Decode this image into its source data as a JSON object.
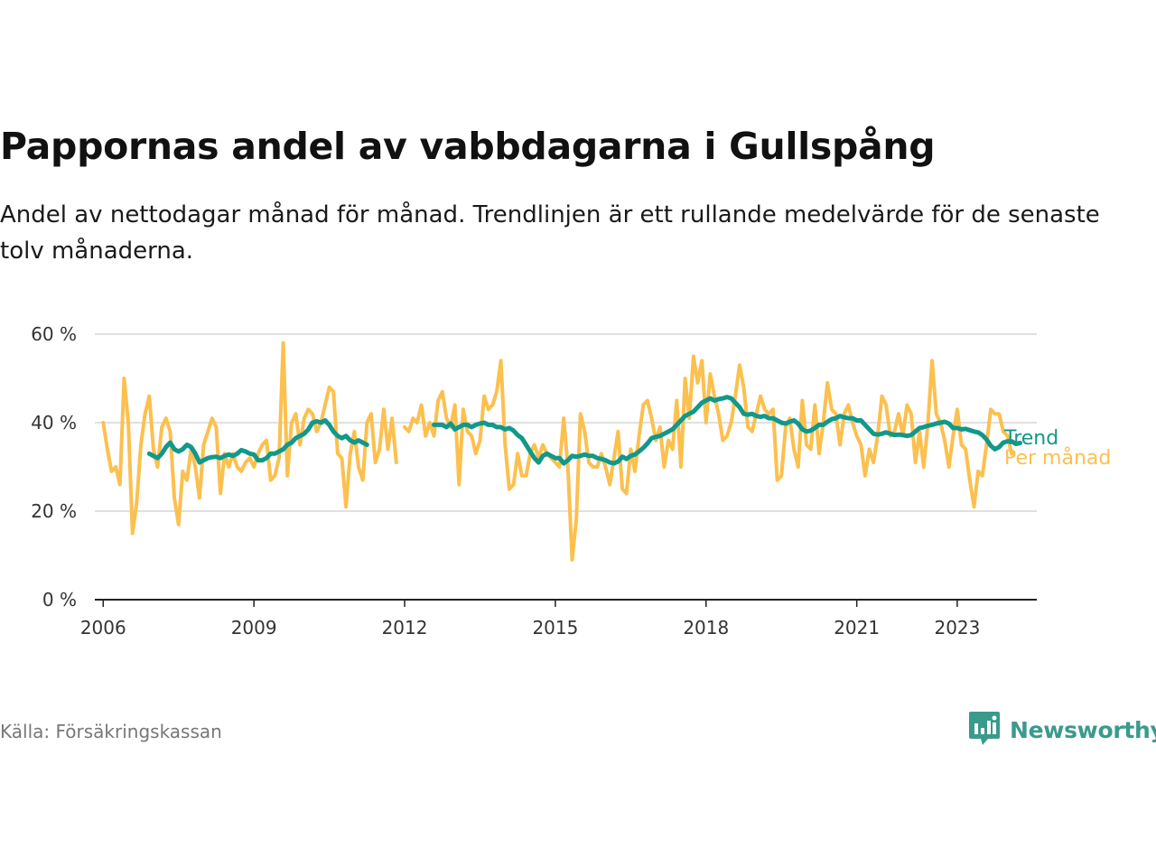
{
  "title": "Pappornas andel av vabbdagarna i Gullspång",
  "subtitle": "Andel av nettodagar månad för månad. Trendlinjen är ett rullande medelvärde för de senaste tolv månaderna.",
  "source": "Källa: Försäkringskassan",
  "brand": {
    "name": "Newsworthy",
    "icon": "newsworthy-logo-icon",
    "color": "#3a9a8c"
  },
  "chart_data": {
    "type": "line",
    "x_axis": {
      "type": "time",
      "range": [
        "2005-11",
        "2024-08"
      ],
      "tick_labels": [
        "2006",
        "2009",
        "2012",
        "2015",
        "2018",
        "2021",
        "2023"
      ],
      "tick_positions": [
        2006,
        2009,
        2012,
        2015,
        2018,
        2021,
        2023
      ]
    },
    "y_axis": {
      "range": [
        0,
        60
      ],
      "ticks": [
        0,
        20,
        40,
        60
      ],
      "tick_labels": [
        "0 %",
        "20 %",
        "40 %",
        "60 %"
      ],
      "grid": true
    },
    "legend": "direct labels at right end of lines",
    "series": [
      {
        "name": "Per månad",
        "color": "#fcc04f",
        "start": "2006-01",
        "values": [
          40,
          34,
          29,
          30,
          26,
          50,
          40,
          15,
          22,
          35,
          42,
          46,
          34,
          30,
          39,
          41,
          38,
          23,
          17,
          29,
          27,
          34,
          30,
          23,
          35,
          38,
          41,
          39,
          24,
          33,
          30,
          33,
          30,
          29,
          31,
          32,
          30,
          33,
          35,
          36,
          27,
          28,
          32,
          58,
          28,
          40,
          42,
          35,
          41,
          43,
          42,
          38,
          40,
          44,
          48,
          47,
          33,
          32,
          21,
          33,
          38,
          30,
          27,
          40,
          42,
          31,
          34,
          43,
          34,
          41,
          31,
          null,
          39,
          38,
          41,
          40,
          44,
          37,
          40,
          37,
          45,
          47,
          41,
          39,
          44,
          26,
          43,
          38,
          37,
          33,
          36,
          46,
          43,
          44,
          47,
          54,
          35,
          25,
          26,
          33,
          28,
          28,
          33,
          35,
          32,
          35,
          33,
          32,
          31,
          30,
          41,
          30,
          9,
          18,
          42,
          38,
          31,
          30,
          30,
          33,
          30,
          26,
          32,
          38,
          25,
          24,
          34,
          29,
          37,
          44,
          45,
          41,
          36,
          39,
          30,
          36,
          34,
          45,
          30,
          50,
          41,
          55,
          49,
          54,
          40,
          51,
          46,
          42,
          36,
          37,
          40,
          46,
          53,
          48,
          39,
          38,
          42,
          46,
          43,
          42,
          43,
          27,
          28,
          39,
          41,
          34,
          30,
          45,
          35,
          34,
          44,
          33,
          40,
          49,
          43,
          42,
          35,
          42,
          44,
          40,
          37,
          35,
          28,
          34,
          31,
          37,
          46,
          44,
          37,
          38,
          42,
          37,
          44,
          42,
          31,
          38,
          30,
          40,
          54,
          42,
          40,
          36,
          30,
          37,
          43,
          35,
          34,
          27,
          21,
          29,
          28,
          35,
          43,
          42,
          42,
          38,
          37,
          33
        ]
      },
      {
        "name": "Trend",
        "color": "#12988a",
        "start": "2006-12",
        "values": [
          33,
          32.5,
          32,
          33,
          34.5,
          35.5,
          34,
          33.5,
          34,
          35,
          34.5,
          33,
          31,
          31.5,
          32,
          32.2,
          32.3,
          32,
          32.5,
          32.8,
          32.5,
          33,
          33.8,
          33.5,
          33,
          32.8,
          31.5,
          31.5,
          32,
          33,
          33,
          33.5,
          34,
          35,
          35.5,
          36.5,
          37,
          37.5,
          38.5,
          40,
          40.3,
          40,
          40.5,
          39.5,
          38,
          37,
          36.5,
          37,
          36,
          35.5,
          36,
          35.5,
          35,
          null,
          null,
          null,
          null,
          null,
          null,
          null,
          null,
          null,
          null,
          null,
          null,
          null,
          null,
          null,
          39.5,
          39.5,
          39.5,
          39,
          39.8,
          38.5,
          39,
          39.5,
          39.5,
          39,
          39.5,
          39.8,
          40,
          39.5,
          39.5,
          39,
          39,
          38.5,
          38.8,
          38.2,
          37.2,
          36.5,
          35,
          33.5,
          32,
          31,
          32.5,
          33,
          32.5,
          32,
          32,
          30.8,
          31.5,
          32.5,
          32.3,
          32.5,
          32.8,
          32.5,
          32.5,
          32,
          31.8,
          31.5,
          31,
          30.8,
          31.2,
          32.3,
          31.8,
          32.5,
          32.8,
          33.5,
          34.3,
          35.3,
          36.5,
          36.8,
          37,
          37.5,
          38,
          38.5,
          39.5,
          40.5,
          41.5,
          42,
          42.5,
          43.5,
          44.5,
          45,
          45.5,
          45,
          45.3,
          45.5,
          45.8,
          45.5,
          44.5,
          43.5,
          42,
          41.8,
          42,
          41.5,
          41.3,
          41.5,
          41,
          41,
          40.5,
          40,
          39.8,
          40.2,
          40.5,
          39.8,
          38.5,
          38,
          38.2,
          38.8,
          39.5,
          39.5,
          40.2,
          40.8,
          41,
          41.5,
          41.2,
          41,
          41,
          40.5,
          40.5,
          39.5,
          38.5,
          37.5,
          37.3,
          37.5,
          37.8,
          37.5,
          37.2,
          37.3,
          37.2,
          37,
          37.2,
          38,
          38.8,
          39,
          39.3,
          39.5,
          39.8,
          40,
          40.2,
          39.8,
          38.8,
          38.8,
          38.5,
          38.6,
          38.3,
          38,
          37.8,
          37.2,
          36.2,
          34.8,
          34,
          34.5,
          35.5,
          35.8,
          35.8,
          35.2,
          35.4
        ]
      }
    ]
  }
}
